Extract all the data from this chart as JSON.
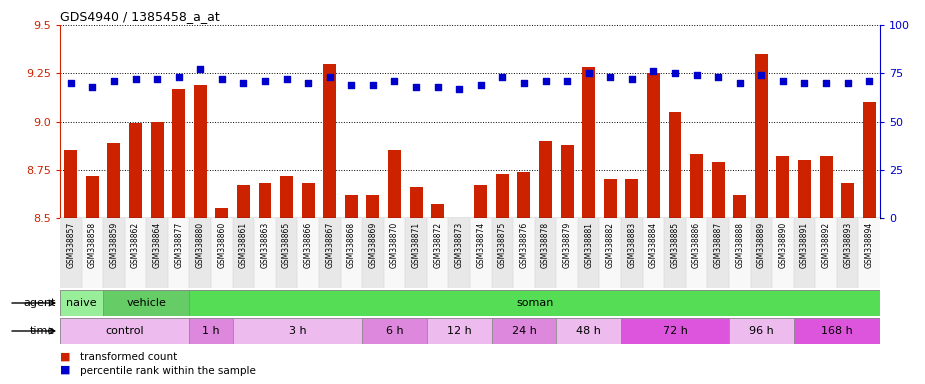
{
  "title": "GDS4940 / 1385458_a_at",
  "samples": [
    "GSM338857",
    "GSM338858",
    "GSM338859",
    "GSM338862",
    "GSM338864",
    "GSM338877",
    "GSM338880",
    "GSM338860",
    "GSM338861",
    "GSM338863",
    "GSM338865",
    "GSM338866",
    "GSM338867",
    "GSM338868",
    "GSM338869",
    "GSM338870",
    "GSM338871",
    "GSM338872",
    "GSM338873",
    "GSM338874",
    "GSM338875",
    "GSM338876",
    "GSM338878",
    "GSM338879",
    "GSM338881",
    "GSM338882",
    "GSM338883",
    "GSM338884",
    "GSM338885",
    "GSM338886",
    "GSM338887",
    "GSM338888",
    "GSM338889",
    "GSM338890",
    "GSM338891",
    "GSM338892",
    "GSM338893",
    "GSM338894"
  ],
  "bar_values": [
    8.85,
    8.72,
    8.89,
    8.99,
    9.0,
    9.17,
    9.19,
    8.55,
    8.67,
    8.68,
    8.72,
    8.68,
    9.3,
    8.62,
    8.62,
    8.85,
    8.66,
    8.57,
    8.5,
    8.67,
    8.73,
    8.74,
    8.9,
    8.88,
    9.28,
    8.7,
    8.7,
    9.25,
    9.05,
    8.83,
    8.79,
    8.62,
    9.35,
    8.82,
    8.8,
    8.82,
    8.68,
    9.1
  ],
  "percentile_values": [
    70,
    68,
    71,
    72,
    72,
    73,
    77,
    72,
    70,
    71,
    72,
    70,
    73,
    69,
    69,
    71,
    68,
    68,
    67,
    69,
    73,
    70,
    71,
    71,
    75,
    73,
    72,
    76,
    75,
    74,
    73,
    70,
    74,
    71,
    70,
    70,
    70,
    71
  ],
  "bar_color": "#cc2200",
  "percentile_color": "#0000cc",
  "ylim_left": [
    8.5,
    9.5
  ],
  "ylim_right": [
    0,
    100
  ],
  "yticks_left": [
    8.5,
    8.75,
    9.0,
    9.25,
    9.5
  ],
  "yticks_right": [
    0,
    25,
    50,
    75,
    100
  ],
  "agent_groups": [
    {
      "label": "naive",
      "start": 0,
      "end": 2,
      "color": "#99ee99"
    },
    {
      "label": "vehicle",
      "start": 2,
      "end": 6,
      "color": "#66cc66"
    },
    {
      "label": "soman",
      "start": 6,
      "end": 38,
      "color": "#55dd55"
    }
  ],
  "time_groups": [
    {
      "label": "control",
      "start": 0,
      "end": 6,
      "color": "#eebbee"
    },
    {
      "label": "1 h",
      "start": 6,
      "end": 8,
      "color": "#dd88dd"
    },
    {
      "label": "3 h",
      "start": 8,
      "end": 14,
      "color": "#eebbee"
    },
    {
      "label": "6 h",
      "start": 14,
      "end": 17,
      "color": "#dd88dd"
    },
    {
      "label": "12 h",
      "start": 17,
      "end": 20,
      "color": "#eebbee"
    },
    {
      "label": "24 h",
      "start": 20,
      "end": 23,
      "color": "#dd88dd"
    },
    {
      "label": "48 h",
      "start": 23,
      "end": 26,
      "color": "#eebbee"
    },
    {
      "label": "72 h",
      "start": 26,
      "end": 31,
      "color": "#dd55dd"
    },
    {
      "label": "96 h",
      "start": 31,
      "end": 34,
      "color": "#eebbee"
    },
    {
      "label": "168 h",
      "start": 34,
      "end": 38,
      "color": "#dd55dd"
    }
  ],
  "fig_bg": "#ffffff",
  "plot_bg": "#ffffff",
  "xtick_bg_odd": "#e8e8e8",
  "xtick_bg_even": "#f8f8f8"
}
